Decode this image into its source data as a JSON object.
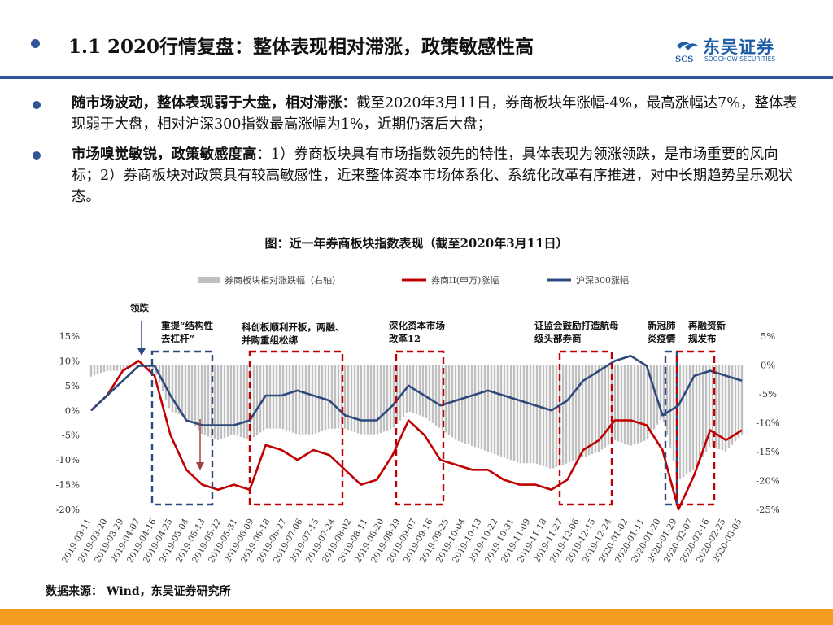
{
  "header": {
    "title": "1.1 2020行情复盘：整体表现相对滞涨，政策敏感性高",
    "logo_cn": "东吴证券",
    "logo_en": "SOOCHOW SECURITIES",
    "logo_mark": "SCS"
  },
  "bullets": [
    {
      "bold": "随市场波动，整体表现弱于大盘，相对滞涨：",
      "text": "截至2020年3月11日，券商板块年涨幅-4%，最高涨幅达7%，整体表现弱于大盘，相对沪深300指数最高涨幅为1%，近期仍落后大盘；"
    },
    {
      "bold": "市场嗅觉敏锐，政策敏感度高",
      "text": "：1）券商板块具有市场指数领先的特性，具体表现为领涨领跌，是市场重要的风向标；2）券商板块对政策具有较高敏感性，近来整体资本市场体系化、系统化改革有序推进，对中长期趋势呈乐观状态。"
    }
  ],
  "figure_title": "图：近一年券商板块指数表现（截至2020年3月11日）",
  "source": "数据来源： Wind，东吴证券研究所",
  "colors": {
    "accent": "#2f5597",
    "red_series": "#c00000",
    "blue_series": "#2e4a7d",
    "bars": "#bfbfbf",
    "footer": "#f39c1f"
  },
  "chart_data": {
    "type": "line",
    "legend": [
      "券商板块相对涨跌幅（右轴）",
      "券商II(申万)涨幅",
      "沪深300涨幅"
    ],
    "legend_position": "top",
    "y_left": {
      "ticks": [
        "15%",
        "10%",
        "5%",
        "0%",
        "-5%",
        "-10%",
        "-15%",
        "-20%"
      ],
      "range": [
        -20,
        15
      ]
    },
    "y_right": {
      "ticks": [
        "5%",
        "0%",
        "-5%",
        "-10%",
        "-15%",
        "-20%",
        "-25%"
      ],
      "range": [
        -25,
        5
      ]
    },
    "x_labels": [
      "2019-03-11",
      "2019-03-20",
      "2019-03-29",
      "2019-04-07",
      "2019-04-16",
      "2019-04-25",
      "2019-05-04",
      "2019-05-13",
      "2019-05-22",
      "2019-05-31",
      "2019-06-09",
      "2019-06-18",
      "2019-06-27",
      "2019-07-06",
      "2019-07-15",
      "2019-07-24",
      "2019-08-02",
      "2019-08-11",
      "2019-08-20",
      "2019-08-29",
      "2019-09-07",
      "2019-09-16",
      "2019-09-25",
      "2019-10-04",
      "2019-10-13",
      "2019-10-22",
      "2019-10-31",
      "2019-11-09",
      "2019-11-18",
      "2019-11-27",
      "2019-12-06",
      "2019-12-15",
      "2019-12-24",
      "2020-01-02",
      "2020-01-11",
      "2020-01-20",
      "2020-01-29",
      "2020-02-07",
      "2020-02-16",
      "2020-02-25",
      "2020-03-05"
    ],
    "x": [
      "2019-03-11",
      "2019-03-20",
      "2019-03-29",
      "2019-04-07",
      "2019-04-16",
      "2019-04-25",
      "2019-05-04",
      "2019-05-13",
      "2019-05-22",
      "2019-05-31",
      "2019-06-09",
      "2019-06-18",
      "2019-06-27",
      "2019-07-06",
      "2019-07-15",
      "2019-07-24",
      "2019-08-02",
      "2019-08-11",
      "2019-08-20",
      "2019-08-29",
      "2019-09-07",
      "2019-09-16",
      "2019-09-25",
      "2019-10-04",
      "2019-10-13",
      "2019-10-22",
      "2019-10-31",
      "2019-11-09",
      "2019-11-18",
      "2019-11-27",
      "2019-12-06",
      "2019-12-15",
      "2019-12-24",
      "2020-01-02",
      "2020-01-11",
      "2020-01-20",
      "2020-01-29",
      "2020-02-07",
      "2020-02-16",
      "2020-02-25",
      "2020-03-05",
      "2020-03-11"
    ],
    "series": [
      {
        "name": "券商II(申万)涨幅",
        "axis": "left",
        "values": [
          0,
          3,
          8,
          10,
          7,
          -5,
          -12,
          -15,
          -16,
          -15,
          -16,
          -7,
          -8,
          -10,
          -8,
          -9,
          -12,
          -15,
          -14,
          -9,
          -2,
          -5,
          -10,
          -11,
          -12,
          -12,
          -14,
          -15,
          -15,
          -16,
          -14,
          -8,
          -6,
          -2,
          -2,
          -3,
          -8,
          -20,
          -13,
          -4,
          -6,
          -4
        ]
      },
      {
        "name": "沪深300涨幅",
        "axis": "left",
        "values": [
          0,
          3,
          6,
          9,
          9,
          3,
          -2,
          -3,
          -3,
          -3,
          -2,
          3,
          3,
          4,
          3,
          2,
          -1,
          -2,
          -2,
          1,
          5,
          3,
          1,
          2,
          3,
          4,
          3,
          2,
          1,
          0,
          2,
          6,
          8,
          10,
          11,
          9,
          -1,
          1,
          7,
          8,
          7,
          6
        ]
      },
      {
        "name": "券商板块相对涨跌幅（右轴）",
        "axis": "right",
        "values": [
          -2,
          -1,
          -1,
          0,
          -1,
          -8,
          -9,
          -12,
          -13,
          -12,
          -13,
          -11,
          -11,
          -12,
          -12,
          -11,
          -11,
          -12,
          -12,
          -11,
          -8,
          -9,
          -11,
          -13,
          -14,
          -15,
          -16,
          -17,
          -17,
          -18,
          -17,
          -16,
          -15,
          -13,
          -14,
          -13,
          -9,
          -20,
          -18,
          -14,
          -15,
          -12
        ]
      }
    ],
    "annotations": [
      {
        "text": "领跌"
      },
      {
        "text": "重提“结构性去杠杆”"
      },
      {
        "text": "科创板顺利开板，两融、并购重组松绑"
      },
      {
        "text": "深化资本市场改革12条"
      },
      {
        "text": "证监会鼓励打造航母级头部券商"
      },
      {
        "text": "新冠肺炎疫情"
      },
      {
        "text": "再融资新规发布"
      }
    ]
  }
}
